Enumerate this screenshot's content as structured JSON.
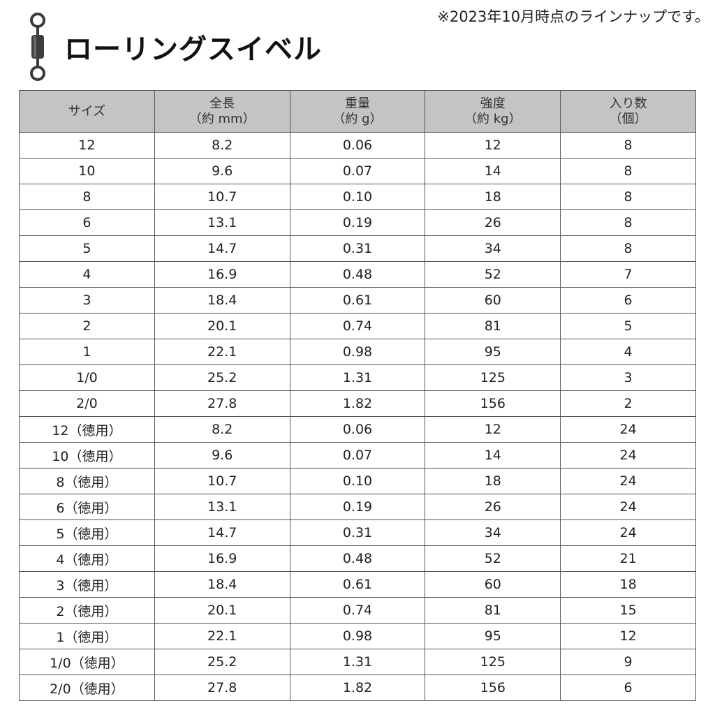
{
  "note": "※2023年10月時点のラインナップです。",
  "title": "ローリングスイベル",
  "headers": [
    {
      "line1": "サイズ",
      "line2": ""
    },
    {
      "line1": "全長",
      "line2": "（約 mm）"
    },
    {
      "line1": "重量",
      "line2": "（約 g）"
    },
    {
      "line1": "強度",
      "line2": "（約 kg）"
    },
    {
      "line1": "入り数",
      "line2": "（個）"
    }
  ],
  "rows": [
    [
      "12",
      "8.2",
      "0.06",
      "12",
      "8"
    ],
    [
      "10",
      "9.6",
      "0.07",
      "14",
      "8"
    ],
    [
      "8",
      "10.7",
      "0.10",
      "18",
      "8"
    ],
    [
      "6",
      "13.1",
      "0.19",
      "26",
      "8"
    ],
    [
      "5",
      "14.7",
      "0.31",
      "34",
      "8"
    ],
    [
      "4",
      "16.9",
      "0.48",
      "52",
      "7"
    ],
    [
      "3",
      "18.4",
      "0.61",
      "60",
      "6"
    ],
    [
      "2",
      "20.1",
      "0.74",
      "81",
      "5"
    ],
    [
      "1",
      "22.1",
      "0.98",
      "95",
      "4"
    ],
    [
      "1/0",
      "25.2",
      "1.31",
      "125",
      "3"
    ],
    [
      "2/0",
      "27.8",
      "1.82",
      "156",
      "2"
    ],
    [
      "12（徳用）",
      "8.2",
      "0.06",
      "12",
      "24"
    ],
    [
      "10（徳用）",
      "9.6",
      "0.07",
      "14",
      "24"
    ],
    [
      "8（徳用）",
      "10.7",
      "0.10",
      "18",
      "24"
    ],
    [
      "6（徳用）",
      "13.1",
      "0.19",
      "26",
      "24"
    ],
    [
      "5（徳用）",
      "14.7",
      "0.31",
      "34",
      "24"
    ],
    [
      "4（徳用）",
      "16.9",
      "0.48",
      "52",
      "21"
    ],
    [
      "3（徳用）",
      "18.4",
      "0.61",
      "60",
      "18"
    ],
    [
      "2（徳用）",
      "20.1",
      "0.74",
      "81",
      "15"
    ],
    [
      "1（徳用）",
      "22.1",
      "0.98",
      "95",
      "12"
    ],
    [
      "1/0（徳用）",
      "25.2",
      "1.31",
      "125",
      "9"
    ],
    [
      "2/0（徳用）",
      "27.8",
      "1.82",
      "156",
      "6"
    ]
  ]
}
